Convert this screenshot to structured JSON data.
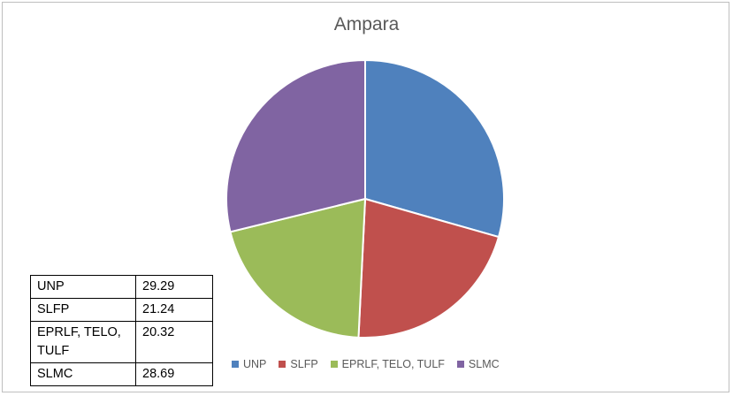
{
  "chart_data": {
    "type": "pie",
    "title": "Ampara",
    "categories": [
      "UNP",
      "SLFP",
      "EPRLF, TELO, TULF",
      "SLMC"
    ],
    "values": [
      29.29,
      21.24,
      20.32,
      28.69
    ],
    "colors": [
      "#4f81bd",
      "#c0504d",
      "#9bbb59",
      "#8064a2"
    ],
    "legend_position": "bottom",
    "table_rows": [
      {
        "label": "UNP",
        "value": "29.29"
      },
      {
        "label": "SLFP",
        "value": "21.24"
      },
      {
        "label": "EPRLF, TELO, TULF",
        "value": "20.32"
      },
      {
        "label": "SLMC",
        "value": "28.69"
      }
    ]
  }
}
